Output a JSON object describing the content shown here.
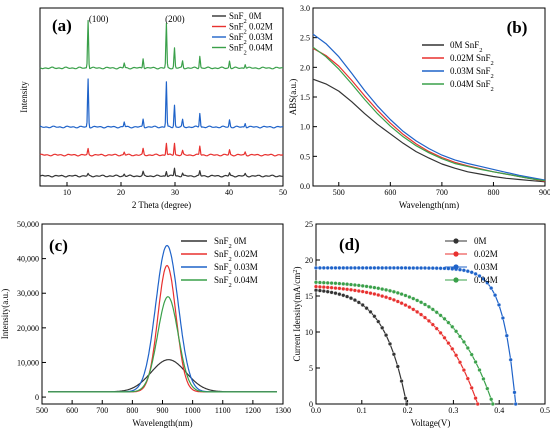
{
  "colors": {
    "black": "#333333",
    "red": "#e8312f",
    "blue": "#1f63c9",
    "green": "#3aa04a"
  },
  "chart_data": [
    {
      "id": "a",
      "type": "line",
      "panel_label": "(a)",
      "xlabel": "2 Theta (degree)",
      "ylabel": "Intensity",
      "xlim": [
        5,
        50
      ],
      "xticks": [
        "10",
        "20",
        "30",
        "40",
        "50"
      ],
      "annotations": [
        {
          "text": "(100)",
          "x": 14.0
        },
        {
          "text": "(200)",
          "x": 28.5
        }
      ],
      "peaks": [
        13.9,
        20.6,
        24.1,
        28.4,
        29.9,
        31.4,
        34.6,
        40.1,
        43.0
      ],
      "series": [
        {
          "name": "SnF2 0M",
          "legend_main": "SnF",
          "legend_sub": "2",
          "legend_rest": " 0M",
          "color": "#333333",
          "offset": 0,
          "peak_heights": [
            2,
            2,
            4,
            5,
            8,
            3,
            5,
            3,
            2
          ]
        },
        {
          "name": "SnF2 0.02M",
          "legend_main": "SnF",
          "legend_sub": "2",
          "legend_rest": " 0.02M",
          "color": "#e8312f",
          "offset": 1,
          "peak_heights": [
            6,
            3,
            6,
            12,
            12,
            4,
            9,
            5,
            3
          ]
        },
        {
          "name": "SnF2 0.03M",
          "legend_main": "SnF",
          "legend_sub": "2",
          "legend_rest": " 0.03M",
          "color": "#1f63c9",
          "offset": 2,
          "peak_heights": [
            48,
            5,
            8,
            45,
            22,
            7,
            14,
            7,
            4
          ]
        },
        {
          "name": "SnF2 0.04M",
          "legend_main": "SnF",
          "legend_sub": "2",
          "legend_rest": " 0.04M",
          "color": "#3aa04a",
          "offset": 3,
          "peak_heights": [
            48,
            5,
            10,
            44,
            20,
            7,
            12,
            7,
            4
          ]
        }
      ]
    },
    {
      "id": "b",
      "type": "line",
      "panel_label": "(b)",
      "xlabel": "Wavelength(nm)",
      "ylabel": "ABS(a.u.)",
      "xlim": [
        450,
        900
      ],
      "ylim": [
        0.0,
        3.0
      ],
      "xticks": [
        500,
        600,
        700,
        800,
        900
      ],
      "yticks": [
        0.0,
        0.5,
        1.0,
        1.5,
        2.0,
        2.5,
        3.0
      ],
      "x": [
        450,
        475,
        500,
        525,
        550,
        575,
        600,
        625,
        650,
        675,
        700,
        725,
        750,
        775,
        800,
        825,
        850,
        875,
        900
      ],
      "series": [
        {
          "name": "0M SnF2",
          "legend_main": "0M SnF",
          "legend_sub": "2",
          "color": "#333333",
          "values": [
            1.8,
            1.72,
            1.6,
            1.42,
            1.22,
            1.04,
            0.88,
            0.72,
            0.58,
            0.47,
            0.37,
            0.3,
            0.24,
            0.2,
            0.16,
            0.13,
            0.11,
            0.09,
            0.07
          ]
        },
        {
          "name": "0.02M SnF2",
          "legend_main": "0.02M SnF",
          "legend_sub": "2",
          "color": "#e8312f",
          "values": [
            2.32,
            2.2,
            2.02,
            1.78,
            1.52,
            1.28,
            1.06,
            0.87,
            0.71,
            0.58,
            0.48,
            0.4,
            0.34,
            0.29,
            0.24,
            0.2,
            0.16,
            0.12,
            0.08
          ]
        },
        {
          "name": "0.03M SnF2",
          "legend_main": "0.03M SnF",
          "legend_sub": "2",
          "color": "#1f63c9",
          "values": [
            2.56,
            2.4,
            2.18,
            1.9,
            1.61,
            1.35,
            1.12,
            0.92,
            0.76,
            0.63,
            0.52,
            0.44,
            0.38,
            0.33,
            0.28,
            0.23,
            0.18,
            0.14,
            0.1
          ]
        },
        {
          "name": "0.04M SnF2",
          "legend_main": "0.04M SnF",
          "legend_sub": "2",
          "color": "#3aa04a",
          "values": [
            2.34,
            2.18,
            1.97,
            1.72,
            1.46,
            1.22,
            1.01,
            0.83,
            0.68,
            0.56,
            0.46,
            0.38,
            0.33,
            0.28,
            0.24,
            0.2,
            0.16,
            0.12,
            0.09
          ]
        }
      ]
    },
    {
      "id": "c",
      "type": "line",
      "panel_label": "(c)",
      "xlabel": "Wavelength(nm)",
      "ylabel": "Intensity(a.u.)",
      "xlim": [
        500,
        1300
      ],
      "ylim": [
        -2000,
        50000
      ],
      "xticks": [
        500,
        600,
        700,
        800,
        900,
        1000,
        1100,
        1200,
        1300
      ],
      "yticks": [
        0,
        10000,
        20000,
        30000,
        40000,
        50000
      ],
      "ytick_labels": [
        "0",
        "10,000",
        "20,000",
        "30,000",
        "40,000",
        "50,000"
      ],
      "baseline": 1500,
      "series": [
        {
          "name": "SnF2 0M",
          "legend_main": "SnF",
          "legend_sub": "2",
          "legend_rest": " 0M",
          "color": "#333333",
          "peak_x": 920,
          "peak_y": 10800,
          "sigma": 58
        },
        {
          "name": "SnF2 0.02M",
          "legend_main": "SnF",
          "legend_sub": "2",
          "legend_rest": " 0.02M",
          "color": "#e8312f",
          "peak_x": 915,
          "peak_y": 38000,
          "sigma": 30
        },
        {
          "name": "SnF2 0.03M",
          "legend_main": "SnF",
          "legend_sub": "2",
          "legend_rest": " 0.03M",
          "color": "#1f63c9",
          "peak_x": 915,
          "peak_y": 43800,
          "sigma": 37
        },
        {
          "name": "SnF2 0.04M",
          "legend_main": "SnF",
          "legend_sub": "2",
          "legend_rest": " 0.04M",
          "color": "#3aa04a",
          "peak_x": 918,
          "peak_y": 29000,
          "sigma": 34
        }
      ]
    },
    {
      "id": "d",
      "type": "scatter",
      "panel_label": "(d)",
      "xlabel": "Voltage(V)",
      "ylabel_main": "Current Idensity(mA/cm",
      "ylabel_sup": "2",
      "ylabel_end": ")",
      "xlim": [
        0.0,
        0.5
      ],
      "ylim": [
        0,
        25
      ],
      "xticks": [
        0.0,
        0.1,
        0.2,
        0.3,
        0.4,
        0.5
      ],
      "yticks": [
        0,
        5,
        10,
        15,
        20,
        25
      ],
      "series": [
        {
          "name": "0M",
          "color": "#333333",
          "jsc": 15.8,
          "voc": 0.198,
          "a": 0.05
        },
        {
          "name": "0.02M",
          "color": "#e8312f",
          "jsc": 16.3,
          "voc": 0.353,
          "a": 0.09
        },
        {
          "name": "0.03M",
          "color": "#1f63c9",
          "jsc": 18.9,
          "voc": 0.436,
          "a": 0.028
        },
        {
          "name": "0.04M",
          "color": "#3aa04a",
          "jsc": 16.9,
          "voc": 0.386,
          "a": 0.09
        }
      ]
    }
  ]
}
